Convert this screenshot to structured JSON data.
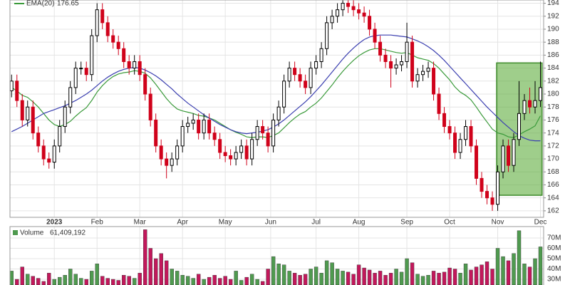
{
  "chart_data": {
    "type": "candlestick",
    "xlim": [
      -0.3,
      99.6
    ],
    "xticks": [
      {
        "value": 8,
        "label": "2023"
      },
      {
        "value": 16,
        "label": "Feb"
      },
      {
        "value": 24,
        "label": "Mar"
      },
      {
        "value": 32,
        "label": "Apr"
      },
      {
        "value": 40,
        "label": "May"
      },
      {
        "value": 48.5,
        "label": "Jun"
      },
      {
        "value": 57,
        "label": "Jul"
      },
      {
        "value": 65,
        "label": "Aug"
      },
      {
        "value": 74,
        "label": "Sep"
      },
      {
        "value": 82,
        "label": "Oct"
      },
      {
        "value": 91,
        "label": "Nov"
      },
      {
        "value": 99,
        "label": "Dec"
      }
    ],
    "ylim": [
      161,
      194.5
    ],
    "yticks": [
      162,
      164,
      166,
      168,
      170,
      172,
      174,
      176,
      178,
      180,
      182,
      184,
      186,
      188,
      190,
      192,
      194
    ],
    "grid": true,
    "up_color": "#000000",
    "down_color": "#d0021b",
    "open": [
      180.5,
      182,
      179,
      176,
      178,
      174,
      172,
      170,
      169.5,
      172,
      175,
      178,
      181,
      184,
      184,
      183,
      189,
      193,
      191,
      189,
      188,
      187,
      185,
      184,
      185,
      183,
      180,
      176,
      172,
      170,
      169,
      170,
      172,
      175,
      175.5,
      176,
      174,
      176,
      174,
      173,
      171,
      170.5,
      170,
      171,
      172,
      170,
      173,
      175,
      174,
      172,
      176,
      178,
      182,
      184,
      183,
      182,
      181,
      184,
      185,
      187,
      191,
      192,
      193,
      194,
      193.5,
      193,
      192.5,
      192,
      190,
      188,
      186,
      185,
      184,
      184.5,
      185,
      188,
      182,
      183,
      183.5,
      184,
      180,
      177,
      175,
      174,
      171,
      173,
      175,
      172,
      167,
      165,
      164,
      163,
      168,
      172,
      169,
      173,
      177,
      179,
      178,
      179
    ],
    "high": [
      183,
      183,
      180,
      179,
      179,
      175,
      173,
      171,
      173,
      176,
      179,
      182,
      185,
      185,
      185,
      190,
      194,
      194,
      192,
      190,
      189,
      188,
      186,
      186,
      186,
      184,
      181,
      177,
      173,
      171,
      171,
      173,
      176,
      176.5,
      177,
      177,
      177,
      177,
      175,
      174,
      172,
      171.5,
      172,
      173,
      173,
      174,
      176,
      176,
      175,
      177,
      179,
      183,
      185,
      185,
      184,
      183,
      185,
      186,
      188,
      192,
      193,
      194,
      194.5,
      194.5,
      194.5,
      194,
      193.5,
      193,
      191,
      189,
      187,
      186,
      185.5,
      186,
      191,
      189,
      184,
      184.5,
      185,
      185,
      181,
      178,
      176,
      175,
      174,
      176,
      176,
      173,
      168,
      166,
      165,
      169,
      173,
      173,
      174,
      182,
      180,
      181,
      182,
      185
    ],
    "low": [
      179.5,
      178,
      175,
      175,
      173,
      171,
      169,
      168.5,
      168.5,
      171,
      174,
      177,
      180,
      183,
      182,
      182,
      188,
      190,
      188,
      187,
      186,
      184,
      183,
      183,
      182,
      179,
      175,
      171,
      169,
      167,
      168,
      169,
      171,
      174,
      174.5,
      173,
      173,
      173,
      172,
      170,
      169.5,
      169,
      169,
      170,
      169,
      169,
      172,
      173,
      171,
      171,
      175,
      177,
      181,
      182,
      181,
      180,
      180,
      183,
      184,
      186,
      190,
      191,
      192,
      192.5,
      192,
      191.5,
      191,
      189,
      187,
      185,
      184,
      181,
      183,
      183.5,
      184,
      181,
      181,
      182,
      182.5,
      179,
      176,
      174,
      173,
      170,
      170,
      172,
      171,
      166,
      164,
      163,
      162,
      162,
      167,
      168,
      168,
      172,
      176,
      177,
      177,
      178
    ],
    "close": [
      182,
      179,
      176,
      178,
      174,
      172,
      170,
      169.5,
      172,
      175,
      178,
      181,
      184,
      184,
      183,
      189,
      193,
      191,
      189,
      188,
      187,
      185,
      184,
      185,
      183,
      180,
      176,
      172,
      170,
      169,
      170,
      172,
      175,
      175.5,
      176,
      174,
      176,
      174,
      173,
      171,
      170.5,
      170,
      171,
      172,
      170,
      173,
      175,
      174,
      172,
      176,
      178,
      182,
      184,
      183,
      182,
      181,
      184,
      185,
      187,
      191,
      192,
      193,
      194,
      193.5,
      193,
      192.5,
      192,
      190,
      188,
      186,
      185,
      184,
      184.5,
      185,
      188,
      182,
      183,
      183.5,
      184,
      180,
      177,
      175,
      174,
      171,
      173,
      175,
      172,
      167,
      165,
      164,
      163,
      168,
      172,
      169,
      173,
      177,
      179,
      178,
      179,
      181
    ],
    "series": [
      {
        "name": "EMA(20)",
        "color": "#3a9a3a",
        "values": [
          181,
          180.5,
          179.8,
          179.5,
          178.8,
          178,
          177,
          176,
          175.3,
          175,
          175.3,
          175.8,
          176.6,
          177.3,
          177.9,
          179,
          180.3,
          181.3,
          182.1,
          182.7,
          183.1,
          183.3,
          183.4,
          183.6,
          183.5,
          183.2,
          182.5,
          181.5,
          180.4,
          179.3,
          178.4,
          177.7,
          177.4,
          177.2,
          177,
          176.7,
          176.6,
          176.3,
          176,
          175.5,
          175,
          174.5,
          174.1,
          173.8,
          173.4,
          173.3,
          173.4,
          173.4,
          173.3,
          173.6,
          174,
          174.8,
          175.6,
          176.3,
          176.9,
          177.3,
          178,
          178.6,
          179.4,
          180.4,
          181.4,
          182.5,
          183.5,
          184.4,
          185.2,
          185.9,
          186.4,
          186.8,
          187,
          187,
          186.8,
          186.6,
          186.4,
          186.3,
          186.4,
          186,
          185.6,
          185.4,
          185.2,
          184.7,
          184,
          183.1,
          182.2,
          181.1,
          180.3,
          179.8,
          179.1,
          178,
          176.8,
          175.7,
          174.6,
          174,
          173.8,
          173.4,
          173.3,
          173.7,
          174.2,
          174.6,
          175.1,
          176.65
        ]
      },
      {
        "color": "#3b3fb0",
        "values": [
          174.2,
          174.6,
          175,
          175.5,
          176,
          176.5,
          177,
          177.3,
          177.6,
          177.9,
          178.2,
          178.6,
          179,
          179.5,
          180,
          180.6,
          181.3,
          182,
          182.6,
          183.1,
          183.5,
          183.8,
          184,
          184.1,
          184,
          183.7,
          183.3,
          182.8,
          182.2,
          181.5,
          180.8,
          180,
          179.3,
          178.6,
          178,
          177.4,
          176.8,
          176.3,
          175.8,
          175.3,
          174.9,
          174.5,
          174.2,
          174,
          173.9,
          174,
          174.1,
          174.3,
          174.5,
          174.9,
          175.4,
          176,
          176.7,
          177.4,
          178.1,
          178.8,
          179.6,
          180.5,
          181.4,
          182.4,
          183.4,
          184.4,
          185.4,
          186.3,
          187.1,
          187.8,
          188.4,
          188.8,
          189,
          189.1,
          189.1,
          189.1,
          189,
          188.9,
          188.8,
          188.5,
          188.2,
          187.8,
          187.3,
          186.7,
          186,
          185.2,
          184.3,
          183.4,
          182.5,
          181.6,
          180.7,
          179.8,
          178.9,
          178,
          177.2,
          176.4,
          175.6,
          174.9,
          174.2,
          173.6,
          173.2,
          172.9,
          172.8,
          172.8
        ]
      }
    ],
    "highlight": {
      "color": "#5fae3e",
      "xlim": [
        90.8,
        99.3
      ],
      "ylim": [
        164.4,
        184.8
      ]
    },
    "volume": {
      "name": "Volume",
      "last_label": "61,409,192",
      "up_color": "#4f9a4f",
      "down_color": "#c2185b",
      "ylim": [
        24.5,
        81
      ],
      "yticks": [
        {
          "value": 30,
          "label": "30M"
        },
        {
          "value": 40,
          "label": "40M"
        },
        {
          "value": 50,
          "label": "50M"
        },
        {
          "value": 60,
          "label": "60M"
        },
        {
          "value": 70,
          "label": "70M"
        }
      ],
      "values": [
        38,
        30,
        42,
        35,
        33,
        31,
        28,
        36,
        30,
        32,
        34,
        40,
        35,
        31,
        30,
        38,
        45,
        33,
        31,
        30,
        29,
        34,
        33,
        31,
        36,
        78,
        60,
        50,
        55,
        48,
        40,
        38,
        34,
        33,
        31,
        35,
        30,
        32,
        34,
        31,
        33,
        30,
        38,
        29,
        32,
        35,
        30,
        28,
        40,
        52,
        45,
        44,
        38,
        36,
        34,
        35,
        40,
        42,
        36,
        48,
        46,
        40,
        38,
        37,
        35,
        44,
        41,
        39,
        36,
        38,
        34,
        36,
        40,
        37,
        50,
        46,
        35,
        33,
        34,
        38,
        36,
        37,
        41,
        40,
        36,
        45,
        39,
        42,
        44,
        47,
        40,
        60,
        52,
        48,
        55,
        77,
        45,
        42,
        50,
        61.409192
      ]
    }
  }
}
